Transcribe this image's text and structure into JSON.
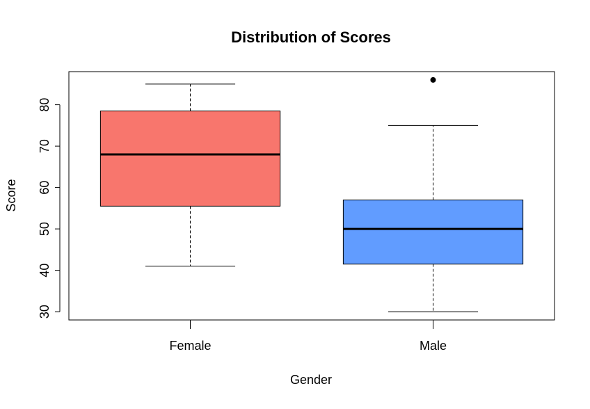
{
  "chart_data": {
    "type": "boxplot",
    "title": "Distribution of Scores",
    "xlabel": "Gender",
    "ylabel": "Score",
    "ylim": [
      28,
      88
    ],
    "yticks": [
      30,
      40,
      50,
      60,
      70,
      80
    ],
    "categories": [
      "Female",
      "Male"
    ],
    "grid": false,
    "boxes": [
      {
        "category": "Female",
        "color": "#F8766D",
        "whisker_low": 41,
        "q1": 55.5,
        "median": 68,
        "q3": 78.5,
        "whisker_high": 85,
        "outliers": []
      },
      {
        "category": "Male",
        "color": "#619CFF",
        "whisker_low": 30,
        "q1": 41.5,
        "median": 50,
        "q3": 57,
        "whisker_high": 75,
        "outliers": [
          86
        ]
      }
    ]
  }
}
